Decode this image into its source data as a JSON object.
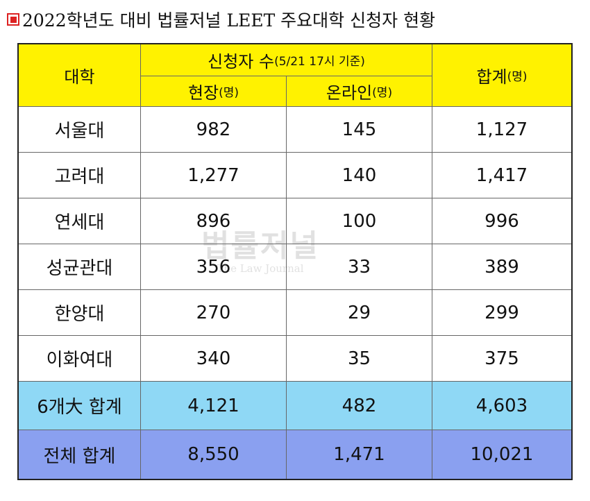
{
  "title": "2022학년도 대비 법률저널 LEET 주요대학 신청자 현황",
  "header": {
    "univ": "대학",
    "applicants": "신청자 수",
    "applicants_note": "(5/21 17시 기준)",
    "onsite": "현장",
    "onsite_unit": "(명)",
    "online": "온라인",
    "online_unit": "(명)",
    "sum": "합계",
    "sum_unit": "(명)"
  },
  "rows": [
    {
      "name": "서울대",
      "onsite": "982",
      "online": "145",
      "total": "1,127"
    },
    {
      "name": "고려대",
      "onsite": "1,277",
      "online": "140",
      "total": "1,417"
    },
    {
      "name": "연세대",
      "onsite": "896",
      "online": "100",
      "total": "996"
    },
    {
      "name": "성균관대",
      "onsite": "356",
      "online": "33",
      "total": "389"
    },
    {
      "name": "한양대",
      "onsite": "270",
      "online": "29",
      "total": "299"
    },
    {
      "name": "이화여대",
      "onsite": "340",
      "online": "35",
      "total": "375"
    }
  ],
  "sum6": {
    "name": "6개大 합계",
    "onsite": "4,121",
    "online": "482",
    "total": "4,603"
  },
  "total": {
    "name": "전체 합계",
    "onsite": "8,550",
    "online": "1,471",
    "total": "10,021"
  },
  "watermark": {
    "main": "법률저널",
    "sub": "The Law Journal"
  }
}
